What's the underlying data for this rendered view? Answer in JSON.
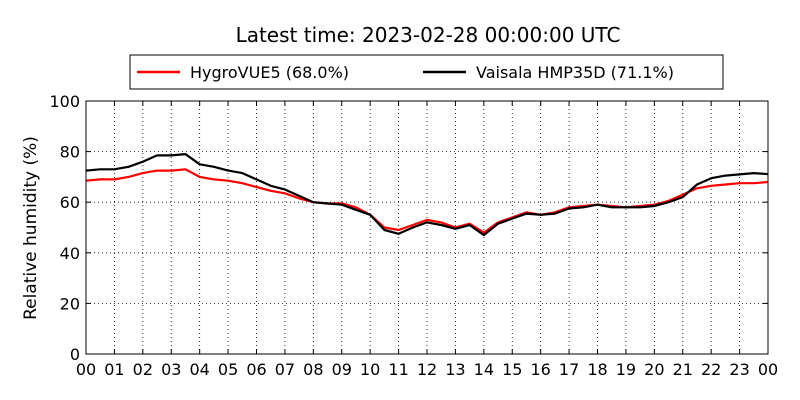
{
  "chart_data": {
    "type": "line",
    "title": "Latest time: 2023-02-28 00:00:00 UTC",
    "xlabel": "",
    "ylabel": "Relative humidity (%)",
    "ylim": [
      0,
      100
    ],
    "yticks": [
      "0",
      "20",
      "40",
      "60",
      "80",
      "100"
    ],
    "xlim": [
      0,
      24
    ],
    "xticks": [
      "00",
      "01",
      "02",
      "03",
      "04",
      "05",
      "06",
      "07",
      "08",
      "09",
      "10",
      "11",
      "12",
      "13",
      "14",
      "15",
      "16",
      "17",
      "18",
      "19",
      "20",
      "21",
      "22",
      "23",
      "00"
    ],
    "grid": true,
    "legend_position": "top-center",
    "x": [
      0,
      0.5,
      1,
      1.5,
      2,
      2.5,
      3,
      3.5,
      4,
      4.5,
      5,
      5.5,
      6,
      6.5,
      7,
      7.5,
      8,
      8.5,
      9,
      9.5,
      10,
      10.5,
      11,
      11.5,
      12,
      12.5,
      13,
      13.5,
      14,
      14.5,
      15,
      15.5,
      16,
      16.5,
      17,
      17.5,
      18,
      18.5,
      19,
      19.5,
      20,
      20.5,
      21,
      21.5,
      22,
      22.5,
      23,
      23.5,
      24
    ],
    "series": [
      {
        "name": "HygroVUE5 (68.0%)",
        "color": "#ff0000",
        "values": [
          68.5,
          69,
          69,
          70,
          71.5,
          72.5,
          72.5,
          73,
          70,
          69,
          68.5,
          67.5,
          66,
          64.5,
          63.5,
          61.5,
          60,
          59.5,
          59.5,
          58,
          55,
          50,
          49,
          51,
          53,
          52,
          50,
          51.5,
          48,
          52,
          54,
          56,
          55,
          56,
          58,
          58.5,
          59,
          58.5,
          58,
          58.5,
          59,
          60.5,
          63,
          65.5,
          66.5,
          67,
          67.5,
          67.5,
          68
        ]
      },
      {
        "name": "Vaisala HMP35D (71.1%)",
        "color": "#000000",
        "values": [
          72.5,
          73,
          73,
          74,
          76,
          78.5,
          78.5,
          79,
          75,
          74,
          72.5,
          71.5,
          69,
          66.5,
          65,
          62.5,
          60,
          59.5,
          59,
          57,
          55,
          49,
          47.5,
          50,
          52,
          51,
          49.5,
          51,
          47,
          51.5,
          53.5,
          55.5,
          55,
          55.5,
          57.5,
          58,
          59,
          58,
          58,
          58,
          58.5,
          60,
          62,
          67,
          69.5,
          70.5,
          71,
          71.5,
          71.1
        ]
      }
    ]
  }
}
